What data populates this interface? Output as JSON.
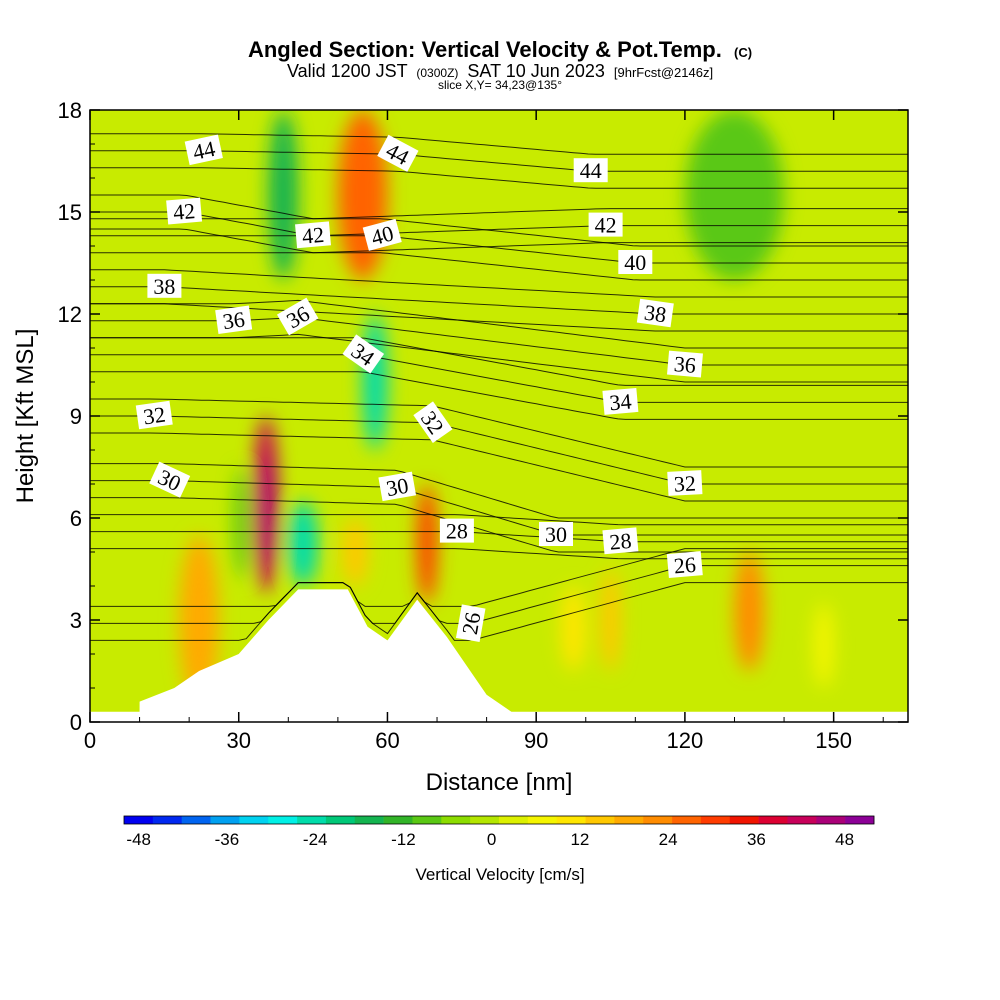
{
  "chart_data": {
    "type": "heatmap",
    "title": "Angled Section: Vertical Velocity & Pot.Temp.",
    "title_units": "(C)",
    "subtitle_prefix": "Valid 1200 JST",
    "subtitle_utc": "(0300Z)",
    "subtitle_date": "SAT 10 Jun 2023",
    "subtitle_fcst": "[9hrFcst@2146z]",
    "subtitle_slice": "slice X,Y= 34,23@135°",
    "xlabel": "Distance [nm]",
    "ylabel": "Height [Kft MSL]",
    "xlim": [
      0,
      165
    ],
    "ylim": [
      0,
      18
    ],
    "x_ticks": [
      "0",
      "30",
      "60",
      "90",
      "120",
      "150"
    ],
    "y_ticks": [
      "0",
      "3",
      "6",
      "9",
      "12",
      "15",
      "18"
    ],
    "colorbar": {
      "label": "Vertical Velocity [cm/s]",
      "min": -50,
      "max": 52,
      "step": 4,
      "tick_labels": [
        "-48",
        "-36",
        "-24",
        "-12",
        "0",
        "12",
        "24",
        "36",
        "48"
      ],
      "tick_values": [
        -48,
        -36,
        -24,
        -12,
        0,
        12,
        24,
        36,
        48
      ],
      "colors": [
        "#0000f0",
        "#0028f0",
        "#0064f0",
        "#00a0f0",
        "#00d2f0",
        "#00f0e6",
        "#00dcaa",
        "#00c878",
        "#14b450",
        "#32b428",
        "#5ac814",
        "#8cdc00",
        "#b4e600",
        "#dcf000",
        "#f5f500",
        "#ffe600",
        "#ffc800",
        "#ffaa00",
        "#ff8c00",
        "#ff6400",
        "#ff3c00",
        "#f01400",
        "#dc0032",
        "#c8005a",
        "#aa0078",
        "#8c0096"
      ]
    },
    "vertical_velocity_cells": [
      {
        "x": [
          18,
          26
        ],
        "y": [
          0.5,
          5.5
        ],
        "value": 20
      },
      {
        "x": [
          33,
          38
        ],
        "y": [
          3.8,
          9
        ],
        "value": 42
      },
      {
        "x": [
          35,
          37.5
        ],
        "y": [
          4.5,
          7.8
        ],
        "value": 48
      },
      {
        "x": [
          29,
          32
        ],
        "y": [
          4.2,
          7.5
        ],
        "value": -10
      },
      {
        "x": [
          40,
          46
        ],
        "y": [
          4,
          6.5
        ],
        "value": -26
      },
      {
        "x": [
          51,
          56
        ],
        "y": [
          4,
          6
        ],
        "value": 14
      },
      {
        "x": [
          66,
          70
        ],
        "y": [
          3.5,
          7
        ],
        "value": 30
      },
      {
        "x": [
          55,
          60
        ],
        "y": [
          8,
          12
        ],
        "value": -24
      },
      {
        "x": [
          36,
          42
        ],
        "y": [
          13,
          18
        ],
        "value": -18
      },
      {
        "x": [
          50,
          60
        ],
        "y": [
          13,
          18
        ],
        "value": 28
      },
      {
        "x": [
          130,
          136
        ],
        "y": [
          1.5,
          5
        ],
        "value": 22
      },
      {
        "x": [
          95,
          100
        ],
        "y": [
          1.5,
          4
        ],
        "value": 12
      },
      {
        "x": [
          103,
          107
        ],
        "y": [
          1.5,
          4.5
        ],
        "value": 14
      },
      {
        "x": [
          146,
          150
        ],
        "y": [
          1,
          3.5
        ],
        "value": 8
      },
      {
        "x": [
          120,
          140
        ],
        "y": [
          13,
          18
        ],
        "value": -10
      }
    ],
    "terrain_height_kft": [
      {
        "x": 10,
        "y": 0.6
      },
      {
        "x": 17,
        "y": 1.0
      },
      {
        "x": 22,
        "y": 1.5
      },
      {
        "x": 30,
        "y": 2.0
      },
      {
        "x": 36,
        "y": 3.0
      },
      {
        "x": 42,
        "y": 3.9
      },
      {
        "x": 52,
        "y": 3.9
      },
      {
        "x": 56,
        "y": 2.8
      },
      {
        "x": 60,
        "y": 2.4
      },
      {
        "x": 66,
        "y": 3.6
      },
      {
        "x": 72,
        "y": 2.5
      },
      {
        "x": 80,
        "y": 0.8
      },
      {
        "x": 85,
        "y": 0.3
      },
      {
        "x": 165,
        "y": 0.3
      }
    ],
    "potential_temperature_labels": [
      {
        "text": "44",
        "x": 23,
        "y": 16.8,
        "angle": -12
      },
      {
        "text": "44",
        "x": 62,
        "y": 16.7,
        "angle": 28
      },
      {
        "text": "44",
        "x": 101,
        "y": 16.2,
        "angle": 0
      },
      {
        "text": "42",
        "x": 19,
        "y": 15.0,
        "angle": -5
      },
      {
        "text": "42",
        "x": 45,
        "y": 14.3,
        "angle": -5
      },
      {
        "text": "42",
        "x": 104,
        "y": 14.6,
        "angle": 0
      },
      {
        "text": "40",
        "x": 59,
        "y": 14.3,
        "angle": -15
      },
      {
        "text": "40",
        "x": 110,
        "y": 13.5,
        "angle": 0
      },
      {
        "text": "38",
        "x": 15,
        "y": 12.8,
        "angle": 0
      },
      {
        "text": "38",
        "x": 114,
        "y": 12.0,
        "angle": 8
      },
      {
        "text": "36",
        "x": 29,
        "y": 11.8,
        "angle": -8
      },
      {
        "text": "36",
        "x": 42,
        "y": 11.9,
        "angle": -30
      },
      {
        "text": "36",
        "x": 120,
        "y": 10.5,
        "angle": 5
      },
      {
        "text": "34",
        "x": 55,
        "y": 10.8,
        "angle": 35
      },
      {
        "text": "34",
        "x": 107,
        "y": 9.4,
        "angle": -5
      },
      {
        "text": "32",
        "x": 13,
        "y": 9.0,
        "angle": -8
      },
      {
        "text": "32",
        "x": 69,
        "y": 8.8,
        "angle": 55
      },
      {
        "text": "32",
        "x": 120,
        "y": 7.0,
        "angle": -3
      },
      {
        "text": "30",
        "x": 16,
        "y": 7.1,
        "angle": 25
      },
      {
        "text": "30",
        "x": 62,
        "y": 6.9,
        "angle": -10
      },
      {
        "text": "30",
        "x": 94,
        "y": 5.5,
        "angle": 0
      },
      {
        "text": "28",
        "x": 74,
        "y": 5.6,
        "angle": 0
      },
      {
        "text": "28",
        "x": 107,
        "y": 5.3,
        "angle": -5
      },
      {
        "text": "26",
        "x": 77,
        "y": 2.9,
        "angle": -80
      },
      {
        "text": "26",
        "x": 120,
        "y": 4.6,
        "angle": -5
      }
    ]
  }
}
